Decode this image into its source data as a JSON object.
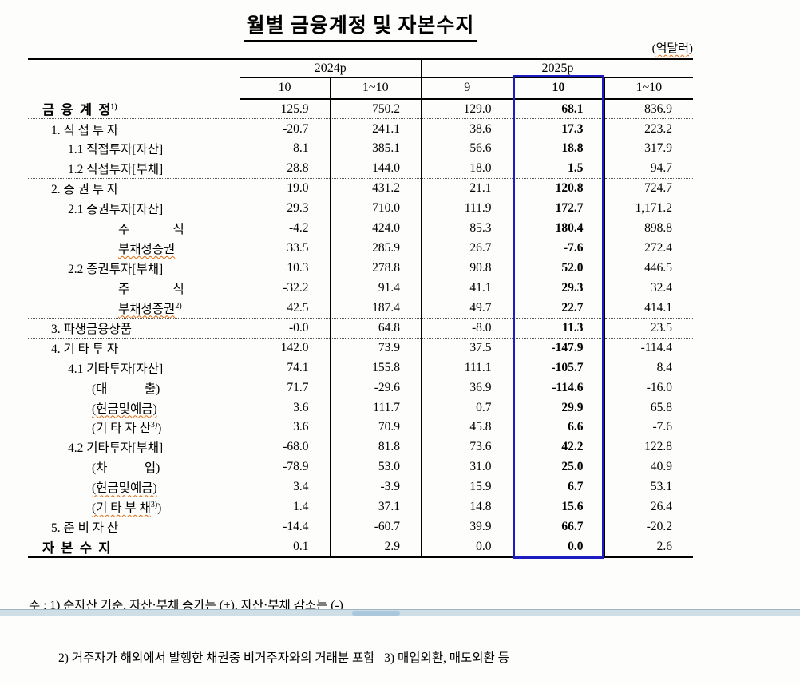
{
  "title": "월별 금융계정 및 자본수지",
  "unit": {
    "open": "(",
    "word": "억달러",
    "close": ")"
  },
  "table": {
    "col_groups": [
      {
        "label": "2024p",
        "span": 2
      },
      {
        "label": "2025p",
        "span": 3
      }
    ],
    "col_headers": [
      "10",
      "1~10",
      "9",
      "10",
      "1~10"
    ],
    "highlight_col": 3,
    "highlight_color": "#1c1cc0",
    "rows": [
      {
        "label": "금  융  계  정",
        "sup": "1)",
        "level": 0,
        "bold": true,
        "sep": false,
        "values": [
          "125.9",
          "750.2",
          "129.0",
          "68.1",
          "836.9"
        ]
      },
      {
        "label": "1. 직 접 투 자",
        "level": 1,
        "sep": true,
        "values": [
          "-20.7",
          "241.1",
          "38.6",
          "17.3",
          "223.2"
        ]
      },
      {
        "label": "1.1 직접투자[자산]",
        "level": 2,
        "values": [
          "8.1",
          "385.1",
          "56.6",
          "18.8",
          "317.9"
        ]
      },
      {
        "label": "1.2 직접투자[부채]",
        "level": 2,
        "values": [
          "28.8",
          "144.0",
          "18.0",
          "1.5",
          "94.7"
        ]
      },
      {
        "label": "2. 증 권 투 자",
        "level": 1,
        "sep": true,
        "values": [
          "19.0",
          "431.2",
          "21.1",
          "120.8",
          "724.7"
        ]
      },
      {
        "label": "2.1 증권투자[자산]",
        "level": 2,
        "values": [
          "29.3",
          "710.0",
          "111.9",
          "172.7",
          "1,171.2"
        ]
      },
      {
        "label": "주              식",
        "level": 4,
        "values": [
          "-4.2",
          "424.0",
          "85.3",
          "180.4",
          "898.8"
        ]
      },
      {
        "label": "부채성증권",
        "level": 4,
        "squiggle": true,
        "values": [
          "33.5",
          "285.9",
          "26.7",
          "-7.6",
          "272.4"
        ]
      },
      {
        "label": "2.2 증권투자[부채]",
        "level": 2,
        "values": [
          "10.3",
          "278.8",
          "90.8",
          "52.0",
          "446.5"
        ]
      },
      {
        "label": "주              식",
        "level": 4,
        "values": [
          "-32.2",
          "91.4",
          "41.1",
          "29.3",
          "32.4"
        ]
      },
      {
        "label": "부채성증권",
        "sup": "2)",
        "level": 4,
        "squiggle": true,
        "values": [
          "42.5",
          "187.4",
          "49.7",
          "22.7",
          "414.1"
        ]
      },
      {
        "label": "3. 파생금융상품",
        "level": 1,
        "sep": true,
        "values": [
          "-0.0",
          "64.8",
          "-8.0",
          "11.3",
          "23.5"
        ]
      },
      {
        "label": "4. 기 타 투 자",
        "level": 1,
        "sep": true,
        "values": [
          "142.0",
          "73.9",
          "37.5",
          "-147.9",
          "-114.4"
        ]
      },
      {
        "label": "4.1 기타투자[자산]",
        "level": 2,
        "values": [
          "74.1",
          "155.8",
          "111.1",
          "-105.7",
          "8.4"
        ]
      },
      {
        "label": "(대            출)",
        "level": 3,
        "values": [
          "71.7",
          "-29.6",
          "36.9",
          "-114.6",
          "-16.0"
        ]
      },
      {
        "label": "(현금및예금)",
        "level": 3,
        "squiggle": true,
        "values": [
          "3.6",
          "111.7",
          "0.7",
          "29.9",
          "65.8"
        ]
      },
      {
        "label": "(기 타 자 산",
        "sup": "3)",
        "suffix": ")",
        "level": 3,
        "values": [
          "3.6",
          "70.9",
          "45.8",
          "6.6",
          "-7.6"
        ]
      },
      {
        "label": "4.2 기타투자[부채]",
        "level": 2,
        "values": [
          "-68.0",
          "81.8",
          "73.6",
          "42.2",
          "122.8"
        ]
      },
      {
        "label": "(차            입)",
        "level": 3,
        "values": [
          "-78.9",
          "53.0",
          "31.0",
          "25.0",
          "40.9"
        ]
      },
      {
        "label": "(현금및예금)",
        "level": 3,
        "squiggle": true,
        "values": [
          "3.4",
          "-3.9",
          "15.9",
          "6.7",
          "53.1"
        ]
      },
      {
        "label": "(기 타 부 채",
        "sup": "3)",
        "suffix": ")",
        "level": 3,
        "squiggle": true,
        "values": [
          "1.4",
          "37.1",
          "14.8",
          "15.6",
          "26.4"
        ]
      },
      {
        "label": "5. 준 비 자 산",
        "level": 1,
        "sep": true,
        "values": [
          "-14.4",
          "-60.7",
          "39.9",
          "66.7",
          "-20.2"
        ]
      },
      {
        "label": "자  본  수  지",
        "level": 0,
        "bold": true,
        "sep": true,
        "values": [
          "0.1",
          "2.9",
          "0.0",
          "0.0",
          "2.6"
        ]
      }
    ]
  },
  "footnotes": [
    "주 : 1) 순자산 기준, 자산·부채 증가는 (+), 자산·부채 감소는 (-)",
    "2) 거주자가 해외에서 발행한 채권중 비거주자와의 거래분 포함   3) 매입외환, 매도외환 등"
  ]
}
